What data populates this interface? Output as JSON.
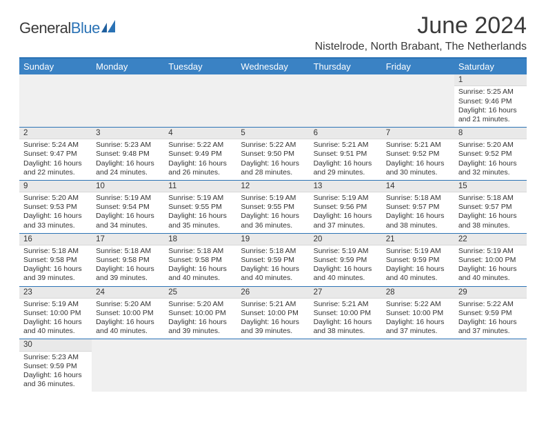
{
  "logo": {
    "word1": "General",
    "word2": "Blue"
  },
  "title": "June 2024",
  "location": "Nistelrode, North Brabant, The Netherlands",
  "colors": {
    "header_bar": "#3a82c4",
    "border": "#2a72b5",
    "daynum_bg": "#e9e9e9",
    "empty_bg": "#f0f0f0",
    "text": "#333333"
  },
  "weekdays": [
    "Sunday",
    "Monday",
    "Tuesday",
    "Wednesday",
    "Thursday",
    "Friday",
    "Saturday"
  ],
  "weeks": [
    [
      null,
      null,
      null,
      null,
      null,
      null,
      {
        "n": "1",
        "sr": "Sunrise: 5:25 AM",
        "ss": "Sunset: 9:46 PM",
        "dl": "Daylight: 16 hours and 21 minutes."
      }
    ],
    [
      {
        "n": "2",
        "sr": "Sunrise: 5:24 AM",
        "ss": "Sunset: 9:47 PM",
        "dl": "Daylight: 16 hours and 22 minutes."
      },
      {
        "n": "3",
        "sr": "Sunrise: 5:23 AM",
        "ss": "Sunset: 9:48 PM",
        "dl": "Daylight: 16 hours and 24 minutes."
      },
      {
        "n": "4",
        "sr": "Sunrise: 5:22 AM",
        "ss": "Sunset: 9:49 PM",
        "dl": "Daylight: 16 hours and 26 minutes."
      },
      {
        "n": "5",
        "sr": "Sunrise: 5:22 AM",
        "ss": "Sunset: 9:50 PM",
        "dl": "Daylight: 16 hours and 28 minutes."
      },
      {
        "n": "6",
        "sr": "Sunrise: 5:21 AM",
        "ss": "Sunset: 9:51 PM",
        "dl": "Daylight: 16 hours and 29 minutes."
      },
      {
        "n": "7",
        "sr": "Sunrise: 5:21 AM",
        "ss": "Sunset: 9:52 PM",
        "dl": "Daylight: 16 hours and 30 minutes."
      },
      {
        "n": "8",
        "sr": "Sunrise: 5:20 AM",
        "ss": "Sunset: 9:52 PM",
        "dl": "Daylight: 16 hours and 32 minutes."
      }
    ],
    [
      {
        "n": "9",
        "sr": "Sunrise: 5:20 AM",
        "ss": "Sunset: 9:53 PM",
        "dl": "Daylight: 16 hours and 33 minutes."
      },
      {
        "n": "10",
        "sr": "Sunrise: 5:19 AM",
        "ss": "Sunset: 9:54 PM",
        "dl": "Daylight: 16 hours and 34 minutes."
      },
      {
        "n": "11",
        "sr": "Sunrise: 5:19 AM",
        "ss": "Sunset: 9:55 PM",
        "dl": "Daylight: 16 hours and 35 minutes."
      },
      {
        "n": "12",
        "sr": "Sunrise: 5:19 AM",
        "ss": "Sunset: 9:55 PM",
        "dl": "Daylight: 16 hours and 36 minutes."
      },
      {
        "n": "13",
        "sr": "Sunrise: 5:19 AM",
        "ss": "Sunset: 9:56 PM",
        "dl": "Daylight: 16 hours and 37 minutes."
      },
      {
        "n": "14",
        "sr": "Sunrise: 5:18 AM",
        "ss": "Sunset: 9:57 PM",
        "dl": "Daylight: 16 hours and 38 minutes."
      },
      {
        "n": "15",
        "sr": "Sunrise: 5:18 AM",
        "ss": "Sunset: 9:57 PM",
        "dl": "Daylight: 16 hours and 38 minutes."
      }
    ],
    [
      {
        "n": "16",
        "sr": "Sunrise: 5:18 AM",
        "ss": "Sunset: 9:58 PM",
        "dl": "Daylight: 16 hours and 39 minutes."
      },
      {
        "n": "17",
        "sr": "Sunrise: 5:18 AM",
        "ss": "Sunset: 9:58 PM",
        "dl": "Daylight: 16 hours and 39 minutes."
      },
      {
        "n": "18",
        "sr": "Sunrise: 5:18 AM",
        "ss": "Sunset: 9:58 PM",
        "dl": "Daylight: 16 hours and 40 minutes."
      },
      {
        "n": "19",
        "sr": "Sunrise: 5:18 AM",
        "ss": "Sunset: 9:59 PM",
        "dl": "Daylight: 16 hours and 40 minutes."
      },
      {
        "n": "20",
        "sr": "Sunrise: 5:19 AM",
        "ss": "Sunset: 9:59 PM",
        "dl": "Daylight: 16 hours and 40 minutes."
      },
      {
        "n": "21",
        "sr": "Sunrise: 5:19 AM",
        "ss": "Sunset: 9:59 PM",
        "dl": "Daylight: 16 hours and 40 minutes."
      },
      {
        "n": "22",
        "sr": "Sunrise: 5:19 AM",
        "ss": "Sunset: 10:00 PM",
        "dl": "Daylight: 16 hours and 40 minutes."
      }
    ],
    [
      {
        "n": "23",
        "sr": "Sunrise: 5:19 AM",
        "ss": "Sunset: 10:00 PM",
        "dl": "Daylight: 16 hours and 40 minutes."
      },
      {
        "n": "24",
        "sr": "Sunrise: 5:20 AM",
        "ss": "Sunset: 10:00 PM",
        "dl": "Daylight: 16 hours and 40 minutes."
      },
      {
        "n": "25",
        "sr": "Sunrise: 5:20 AM",
        "ss": "Sunset: 10:00 PM",
        "dl": "Daylight: 16 hours and 39 minutes."
      },
      {
        "n": "26",
        "sr": "Sunrise: 5:21 AM",
        "ss": "Sunset: 10:00 PM",
        "dl": "Daylight: 16 hours and 39 minutes."
      },
      {
        "n": "27",
        "sr": "Sunrise: 5:21 AM",
        "ss": "Sunset: 10:00 PM",
        "dl": "Daylight: 16 hours and 38 minutes."
      },
      {
        "n": "28",
        "sr": "Sunrise: 5:22 AM",
        "ss": "Sunset: 10:00 PM",
        "dl": "Daylight: 16 hours and 37 minutes."
      },
      {
        "n": "29",
        "sr": "Sunrise: 5:22 AM",
        "ss": "Sunset: 9:59 PM",
        "dl": "Daylight: 16 hours and 37 minutes."
      }
    ],
    [
      {
        "n": "30",
        "sr": "Sunrise: 5:23 AM",
        "ss": "Sunset: 9:59 PM",
        "dl": "Daylight: 16 hours and 36 minutes."
      },
      null,
      null,
      null,
      null,
      null,
      null
    ]
  ]
}
